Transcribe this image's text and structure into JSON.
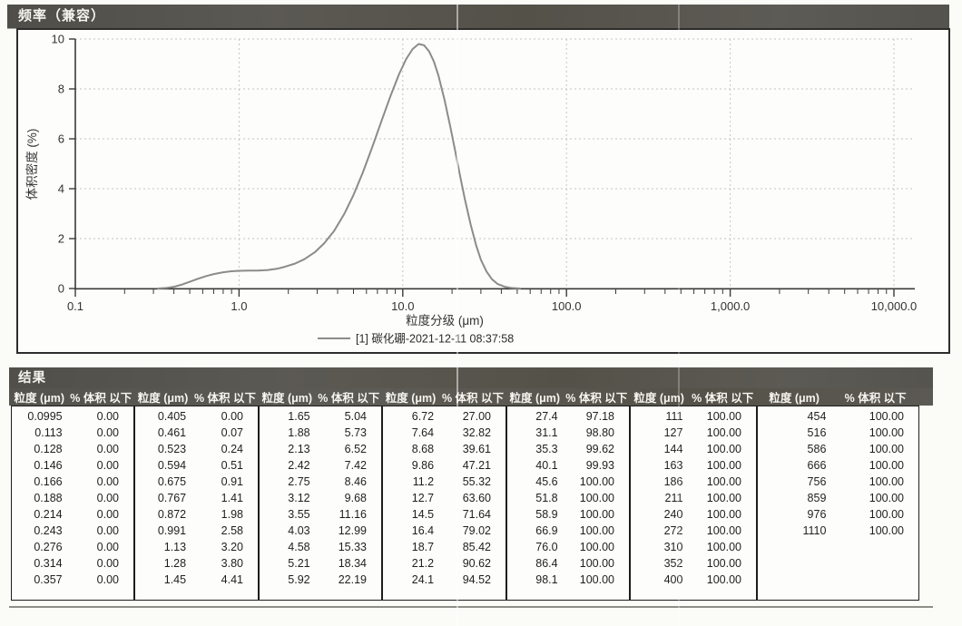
{
  "chart_panel": {
    "title": "频率（兼容）"
  },
  "chart_data": {
    "type": "line",
    "title": "频率（兼容）",
    "xlabel": "粒度分级 (μm)",
    "ylabel": "体积密度 (%)",
    "x_scale": "log",
    "xlim": [
      0.1,
      10000
    ],
    "ylim": [
      0,
      10
    ],
    "x_ticks": [
      "0.1",
      "1.0",
      "10.0",
      "100.0",
      "1,000.0",
      "10,000.0"
    ],
    "y_ticks": [
      0,
      2,
      4,
      6,
      8,
      10
    ],
    "grid": true,
    "legend_position": "bottom-center",
    "legend": [
      {
        "label": "[1] 碳化硼-2021-12-11 08:37:58",
        "color": "#8b8b89"
      }
    ],
    "series": [
      {
        "name": "[1] 碳化硼-2021-12-11 08:37:58",
        "color": "#8b8b89",
        "points": [
          [
            0.32,
            0
          ],
          [
            0.36,
            0.02
          ],
          [
            0.4,
            0.07
          ],
          [
            0.45,
            0.16
          ],
          [
            0.5,
            0.27
          ],
          [
            0.56,
            0.39
          ],
          [
            0.63,
            0.5
          ],
          [
            0.7,
            0.58
          ],
          [
            0.8,
            0.65
          ],
          [
            0.9,
            0.69
          ],
          [
            1.0,
            0.71
          ],
          [
            1.15,
            0.72
          ],
          [
            1.3,
            0.72
          ],
          [
            1.5,
            0.74
          ],
          [
            1.7,
            0.79
          ],
          [
            1.9,
            0.87
          ],
          [
            2.2,
            1.0
          ],
          [
            2.5,
            1.17
          ],
          [
            2.9,
            1.45
          ],
          [
            3.3,
            1.8
          ],
          [
            3.8,
            2.3
          ],
          [
            4.4,
            3.0
          ],
          [
            5.0,
            3.75
          ],
          [
            5.7,
            4.65
          ],
          [
            6.5,
            5.65
          ],
          [
            7.4,
            6.7
          ],
          [
            8.4,
            7.7
          ],
          [
            9.5,
            8.6
          ],
          [
            10.5,
            9.2
          ],
          [
            11.5,
            9.6
          ],
          [
            12.5,
            9.8
          ],
          [
            13.5,
            9.75
          ],
          [
            14.5,
            9.5
          ],
          [
            15.5,
            9.1
          ],
          [
            16.5,
            8.55
          ],
          [
            18.0,
            7.55
          ],
          [
            19.5,
            6.5
          ],
          [
            21.0,
            5.45
          ],
          [
            22.5,
            4.45
          ],
          [
            24.0,
            3.55
          ],
          [
            26.0,
            2.55
          ],
          [
            28.0,
            1.75
          ],
          [
            30.0,
            1.15
          ],
          [
            32.5,
            0.68
          ],
          [
            35.0,
            0.38
          ],
          [
            38.0,
            0.18
          ],
          [
            42.0,
            0.07
          ],
          [
            46.0,
            0.02
          ],
          [
            52.0,
            0.0
          ]
        ]
      }
    ]
  },
  "results": {
    "title": "结果",
    "col_headers": {
      "size": "粒度 (μm)",
      "pct": "% 体积 以下"
    },
    "groups": [
      {
        "rows": [
          [
            "0.0995",
            "0.00"
          ],
          [
            "0.113",
            "0.00"
          ],
          [
            "0.128",
            "0.00"
          ],
          [
            "0.146",
            "0.00"
          ],
          [
            "0.166",
            "0.00"
          ],
          [
            "0.188",
            "0.00"
          ],
          [
            "0.214",
            "0.00"
          ],
          [
            "0.243",
            "0.00"
          ],
          [
            "0.276",
            "0.00"
          ],
          [
            "0.314",
            "0.00"
          ],
          [
            "0.357",
            "0.00"
          ]
        ]
      },
      {
        "rows": [
          [
            "0.405",
            "0.00"
          ],
          [
            "0.461",
            "0.07"
          ],
          [
            "0.523",
            "0.24"
          ],
          [
            "0.594",
            "0.51"
          ],
          [
            "0.675",
            "0.91"
          ],
          [
            "0.767",
            "1.41"
          ],
          [
            "0.872",
            "1.98"
          ],
          [
            "0.991",
            "2.58"
          ],
          [
            "1.13",
            "3.20"
          ],
          [
            "1.28",
            "3.80"
          ],
          [
            "1.45",
            "4.41"
          ]
        ]
      },
      {
        "rows": [
          [
            "1.65",
            "5.04"
          ],
          [
            "1.88",
            "5.73"
          ],
          [
            "2.13",
            "6.52"
          ],
          [
            "2.42",
            "7.42"
          ],
          [
            "2.75",
            "8.46"
          ],
          [
            "3.12",
            "9.68"
          ],
          [
            "3.55",
            "11.16"
          ],
          [
            "4.03",
            "12.99"
          ],
          [
            "4.58",
            "15.33"
          ],
          [
            "5.21",
            "18.34"
          ],
          [
            "5.92",
            "22.19"
          ]
        ]
      },
      {
        "rows": [
          [
            "6.72",
            "27.00"
          ],
          [
            "7.64",
            "32.82"
          ],
          [
            "8.68",
            "39.61"
          ],
          [
            "9.86",
            "47.21"
          ],
          [
            "11.2",
            "55.32"
          ],
          [
            "12.7",
            "63.60"
          ],
          [
            "14.5",
            "71.64"
          ],
          [
            "16.4",
            "79.02"
          ],
          [
            "18.7",
            "85.42"
          ],
          [
            "21.2",
            "90.62"
          ],
          [
            "24.1",
            "94.52"
          ]
        ]
      },
      {
        "rows": [
          [
            "27.4",
            "97.18"
          ],
          [
            "31.1",
            "98.80"
          ],
          [
            "35.3",
            "99.62"
          ],
          [
            "40.1",
            "99.93"
          ],
          [
            "45.6",
            "100.00"
          ],
          [
            "51.8",
            "100.00"
          ],
          [
            "58.9",
            "100.00"
          ],
          [
            "66.9",
            "100.00"
          ],
          [
            "76.0",
            "100.00"
          ],
          [
            "86.4",
            "100.00"
          ],
          [
            "98.1",
            "100.00"
          ]
        ]
      },
      {
        "rows": [
          [
            "111",
            "100.00"
          ],
          [
            "127",
            "100.00"
          ],
          [
            "144",
            "100.00"
          ],
          [
            "163",
            "100.00"
          ],
          [
            "186",
            "100.00"
          ],
          [
            "211",
            "100.00"
          ],
          [
            "240",
            "100.00"
          ],
          [
            "272",
            "100.00"
          ],
          [
            "310",
            "100.00"
          ],
          [
            "352",
            "100.00"
          ],
          [
            "400",
            "100.00"
          ]
        ]
      },
      {
        "rows": [
          [
            "454",
            "100.00"
          ],
          [
            "516",
            "100.00"
          ],
          [
            "586",
            "100.00"
          ],
          [
            "666",
            "100.00"
          ],
          [
            "756",
            "100.00"
          ],
          [
            "859",
            "100.00"
          ],
          [
            "976",
            "100.00"
          ],
          [
            "1110",
            "100.00"
          ]
        ]
      }
    ]
  },
  "colors": {
    "header_bar": "#55534d",
    "curve": "#8b8b89",
    "grid": "#c4c4c0",
    "axis": "#3a3a3a"
  }
}
